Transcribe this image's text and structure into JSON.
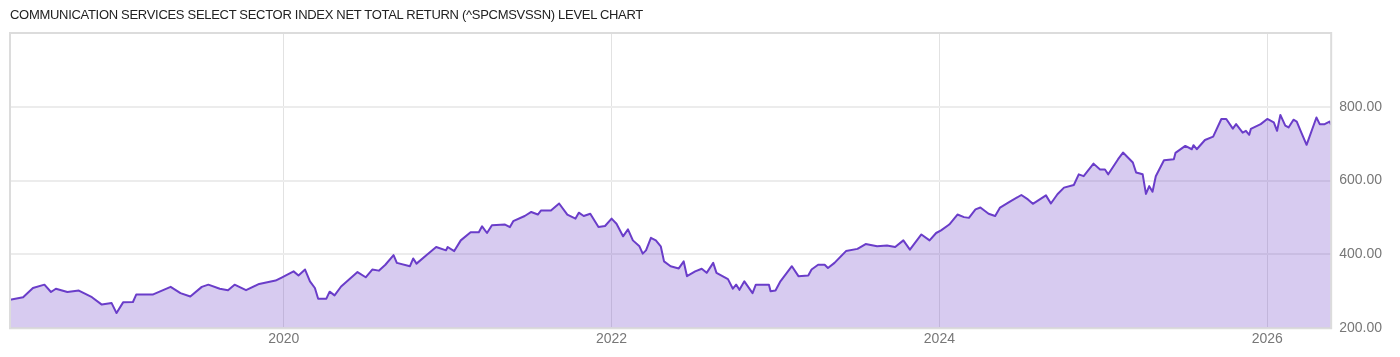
{
  "chart_data": {
    "type": "area",
    "title": "COMMUNICATION SERVICES SELECT SECTOR INDEX NET TOTAL RETURN (^SPCMSVSSN) LEVEL CHART",
    "xlim": [
      2018.33,
      2026.39
    ],
    "xticks": [
      2020,
      2022,
      2024,
      2026
    ],
    "ylim": [
      200,
      1000
    ],
    "yticks": [
      {
        "value": 200,
        "label": "200.00"
      },
      {
        "value": 400,
        "label": "400.00"
      },
      {
        "value": 600,
        "label": "600.00"
      },
      {
        "value": 800,
        "label": "800.00"
      }
    ],
    "grid": true,
    "legend": false,
    "series": [
      {
        "color": "#6a3dc9",
        "x": [
          2018.33,
          2018.41,
          2018.47,
          2018.54,
          2018.58,
          2018.61,
          2018.68,
          2018.75,
          2018.83,
          2018.89,
          2018.95,
          2018.98,
          2019.02,
          2019.08,
          2019.1,
          2019.2,
          2019.31,
          2019.37,
          2019.43,
          2019.5,
          2019.54,
          2019.61,
          2019.66,
          2019.7,
          2019.77,
          2019.85,
          2019.95,
          2019.99,
          2020.06,
          2020.09,
          2020.13,
          2020.16,
          2020.19,
          2020.21,
          2020.26,
          2020.28,
          2020.31,
          2020.35,
          2020.45,
          2020.5,
          2020.54,
          2020.58,
          2020.62,
          2020.67,
          2020.69,
          2020.77,
          2020.79,
          2020.81,
          2020.87,
          2020.93,
          2020.99,
          2021.0,
          2021.04,
          2021.08,
          2021.14,
          2021.19,
          2021.21,
          2021.24,
          2021.27,
          2021.35,
          2021.38,
          2021.4,
          2021.47,
          2021.51,
          2021.55,
          2021.57,
          2021.63,
          2021.68,
          2021.73,
          2021.78,
          2021.8,
          2021.83,
          2021.87,
          2021.92,
          2021.96,
          2022.0,
          2022.03,
          2022.07,
          2022.1,
          2022.13,
          2022.17,
          2022.19,
          2022.21,
          2022.24,
          2022.27,
          2022.3,
          2022.32,
          2022.36,
          2022.41,
          2022.44,
          2022.46,
          2022.51,
          2022.55,
          2022.58,
          2022.62,
          2022.64,
          2022.71,
          2022.74,
          2022.76,
          2022.78,
          2022.81,
          2022.86,
          2022.88,
          2022.96,
          2022.97,
          2023.0,
          2023.03,
          2023.1,
          2023.14,
          2023.2,
          2023.22,
          2023.26,
          2023.3,
          2023.32,
          2023.36,
          2023.43,
          2023.5,
          2023.55,
          2023.62,
          2023.68,
          2023.73,
          2023.78,
          2023.82,
          2023.89,
          2023.94,
          2023.98,
          2024.01,
          2024.06,
          2024.11,
          2024.15,
          2024.18,
          2024.22,
          2024.25,
          2024.3,
          2024.34,
          2024.37,
          2024.43,
          2024.5,
          2024.54,
          2024.57,
          2024.65,
          2024.68,
          2024.72,
          2024.76,
          2024.82,
          2024.85,
          2024.88,
          2024.94,
          2024.98,
          2025.01,
          2025.03,
          2025.09,
          2025.12,
          2025.18,
          2025.2,
          2025.24,
          2025.26,
          2025.28,
          2025.3,
          2025.32,
          2025.37,
          2025.43,
          2025.44,
          2025.5,
          2025.54,
          2025.55,
          2025.57,
          2025.62,
          2025.67,
          2025.72,
          2025.75,
          2025.79,
          2025.81,
          2025.85,
          2025.87,
          2025.89,
          2025.9,
          2025.96,
          2026.0,
          2026.04,
          2026.06,
          2026.08,
          2026.11,
          2026.13,
          2026.16,
          2026.18,
          2026.21,
          2026.24,
          2026.3,
          2026.32,
          2026.35,
          2026.38,
          2026.39
        ],
        "values": [
          277,
          284,
          309,
          318,
          298,
          307,
          298,
          302,
          284,
          264,
          268,
          241,
          270,
          271,
          291,
          291,
          312,
          295,
          286,
          312,
          318,
          307,
          303,
          318,
          303,
          320,
          329,
          338,
          354,
          343,
          359,
          327,
          309,
          280,
          280,
          299,
          289,
          313,
          352,
          338,
          359,
          356,
          372,
          398,
          377,
          368,
          389,
          375,
          398,
          420,
          411,
          420,
          409,
          438,
          460,
          460,
          476,
          458,
          479,
          481,
          474,
          490,
          504,
          515,
          508,
          519,
          519,
          538,
          508,
          497,
          513,
          504,
          510,
          474,
          477,
          497,
          483,
          449,
          468,
          438,
          422,
          402,
          411,
          445,
          438,
          422,
          381,
          368,
          362,
          381,
          341,
          354,
          361,
          350,
          377,
          350,
          333,
          307,
          318,
          304,
          327,
          295,
          318,
          318,
          300,
          302,
          327,
          368,
          341,
          343,
          359,
          372,
          372,
          363,
          377,
          409,
          415,
          428,
          422,
          424,
          420,
          438,
          413,
          454,
          438,
          458,
          465,
          481,
          508,
          501,
          499,
          522,
          527,
          510,
          504,
          527,
          543,
          561,
          549,
          537,
          560,
          538,
          563,
          581,
          588,
          617,
          612,
          646,
          630,
          630,
          617,
          658,
          676,
          649,
          622,
          617,
          564,
          585,
          570,
          612,
          655,
          658,
          675,
          694,
          685,
          696,
          685,
          710,
          719,
          767,
          767,
          741,
          753,
          730,
          735,
          724,
          740,
          753,
          767,
          758,
          735,
          778,
          749,
          744,
          765,
          760,
          728,
          697,
          771,
          753,
          753,
          760,
          751
        ]
      }
    ]
  }
}
